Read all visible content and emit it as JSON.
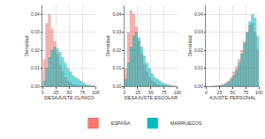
{
  "chart_data": [
    {
      "type": "histogram",
      "x_label": "DESAJUSTE CLINICO",
      "y_label": "Densidad",
      "bins": [
        0,
        5,
        10,
        15,
        20,
        25,
        30,
        35,
        40,
        45,
        50,
        55,
        60,
        65,
        70,
        75,
        80,
        85,
        90,
        95,
        100
      ],
      "series": [
        {
          "name": "ESPAÑA",
          "color": "#F8766D",
          "values": [
            0.015,
            0.035,
            0.04,
            0.032,
            0.025,
            0.018,
            0.012,
            0.008,
            0.005,
            0.003,
            0.002,
            0.001,
            0.0008,
            0.0005,
            0.0003,
            0.0002,
            0.0001,
            0,
            0,
            0
          ]
        },
        {
          "name": "MARRUECOS",
          "color": "#00BFC4",
          "values": [
            0.003,
            0.01,
            0.016,
            0.02,
            0.022,
            0.021,
            0.019,
            0.016,
            0.013,
            0.01,
            0.008,
            0.006,
            0.005,
            0.004,
            0.003,
            0.002,
            0.001,
            0.0008,
            0.0004,
            0.0002
          ]
        }
      ],
      "xlim": [
        0,
        100
      ],
      "xticks": [
        0,
        25,
        50,
        75,
        100
      ],
      "ylim": [
        0,
        0.045
      ],
      "yticks": [
        {
          "value": 0,
          "label": "0.00"
        },
        {
          "value": 0.01,
          "label": "0.01"
        },
        {
          "value": 0.02,
          "label": "0.02"
        },
        {
          "value": 0.03,
          "label": "0.03"
        },
        {
          "value": 0.04,
          "label": "0.04"
        }
      ],
      "grid": true,
      "legend": "bottom"
    },
    {
      "type": "histogram",
      "x_label": "DESAJUSTE ESCOLAR",
      "y_label": "Densidad",
      "bins": [
        0,
        5,
        10,
        15,
        20,
        25,
        30,
        35,
        40,
        45,
        50,
        55,
        60,
        65,
        70,
        75,
        80,
        85,
        90,
        95,
        100
      ],
      "series": [
        {
          "name": "ESPAÑA",
          "color": "#F8766D",
          "values": [
            0.01,
            0.03,
            0.042,
            0.04,
            0.033,
            0.025,
            0.018,
            0.012,
            0.008,
            0.005,
            0.003,
            0.002,
            0.001,
            0.0007,
            0.0004,
            0.0002,
            0.0001,
            0,
            0,
            0
          ]
        },
        {
          "name": "MARRUECOS",
          "color": "#00BFC4",
          "values": [
            0.004,
            0.013,
            0.022,
            0.028,
            0.03,
            0.027,
            0.022,
            0.017,
            0.013,
            0.01,
            0.007,
            0.005,
            0.004,
            0.003,
            0.002,
            0.0015,
            0.001,
            0.0006,
            0.0003,
            0.0001
          ]
        }
      ],
      "xlim": [
        0,
        100
      ],
      "xticks": [
        0,
        25,
        50,
        75,
        100
      ],
      "ylim": [
        0,
        0.045
      ],
      "yticks": [
        {
          "value": 0,
          "label": "0.00"
        },
        {
          "value": 0.01,
          "label": "0.01"
        },
        {
          "value": 0.02,
          "label": "0.02"
        },
        {
          "value": 0.03,
          "label": "0.03"
        },
        {
          "value": 0.04,
          "label": "0.04"
        }
      ],
      "grid": true
    },
    {
      "type": "histogram",
      "x_label": "AJUSTE PERSONAL",
      "y_label": "Densidad",
      "bins": [
        0,
        5,
        10,
        15,
        20,
        25,
        30,
        35,
        40,
        45,
        50,
        55,
        60,
        65,
        70,
        75,
        80,
        85,
        90,
        95,
        100
      ],
      "series": [
        {
          "name": "ESPAÑA",
          "color": "#F8766D",
          "values": [
            0,
            0,
            0,
            0.0002,
            0.0004,
            0.0008,
            0.001,
            0.002,
            0.003,
            0.005,
            0.008,
            0.011,
            0.015,
            0.02,
            0.025,
            0.03,
            0.034,
            0.035,
            0.03,
            0.02
          ]
        },
        {
          "name": "MARRUECOS",
          "color": "#00BFC4",
          "values": [
            0,
            0,
            0,
            0,
            0.0002,
            0.0004,
            0.0008,
            0.0015,
            0.0025,
            0.004,
            0.006,
            0.009,
            0.013,
            0.018,
            0.024,
            0.03,
            0.036,
            0.04,
            0.038,
            0.028
          ]
        }
      ],
      "xlim": [
        0,
        100
      ],
      "xticks": [
        0,
        25,
        50,
        75,
        100
      ],
      "ylim": [
        0,
        0.045
      ],
      "yticks": [
        {
          "value": 0,
          "label": "0.00"
        },
        {
          "value": 0.01,
          "label": "0.01"
        },
        {
          "value": 0.02,
          "label": "0.02"
        },
        {
          "value": 0.03,
          "label": "0.03"
        },
        {
          "value": 0.04,
          "label": "0.04"
        }
      ],
      "grid": true
    }
  ]
}
